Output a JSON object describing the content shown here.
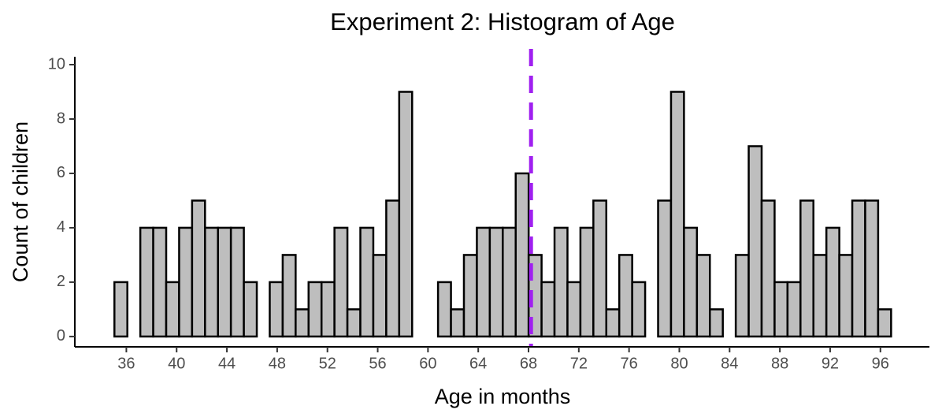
{
  "chart_data": {
    "type": "histogram",
    "title": "Experiment 2: Histogram of Age",
    "xlabel": "Age in months",
    "ylabel": "Count of children",
    "bins": [
      35.05,
      36.08,
      37.11,
      38.14,
      39.17,
      40.2,
      41.23,
      42.26,
      43.29,
      44.32,
      45.35,
      46.38,
      47.41,
      48.44,
      49.47,
      50.5,
      51.53,
      52.56,
      53.59,
      54.62,
      55.65,
      56.68,
      57.71,
      58.74,
      59.77,
      60.8,
      61.83,
      62.86,
      63.89,
      64.92,
      65.95,
      66.98,
      68.01,
      69.04,
      70.07,
      71.1,
      72.13,
      73.16,
      74.19,
      75.22,
      76.25,
      77.28,
      78.31,
      79.34,
      80.37,
      81.4,
      82.43,
      83.46,
      84.49,
      85.52,
      86.55,
      87.58,
      88.61,
      89.64,
      90.67,
      91.7,
      92.73,
      93.76,
      94.79,
      95.82,
      96.85
    ],
    "counts": [
      2,
      0,
      4,
      4,
      2,
      4,
      5,
      4,
      4,
      4,
      2,
      0,
      2,
      3,
      1,
      2,
      2,
      4,
      1,
      4,
      3,
      5,
      9,
      0,
      0,
      2,
      1,
      3,
      4,
      4,
      4,
      6,
      3,
      2,
      4,
      2,
      4,
      5,
      1,
      3,
      2,
      0,
      5,
      9,
      4,
      3,
      1,
      0,
      3,
      7,
      5,
      2,
      2,
      5,
      3,
      4,
      3,
      5,
      5,
      1
    ],
    "color": "#bebebe",
    "edgecolor": "#000000",
    "xlim": [
      31.9,
      99.9
    ],
    "ylim": [
      -0.38,
      10.29
    ],
    "xticks": [
      36,
      40,
      44,
      48,
      52,
      56,
      60,
      64,
      68,
      72,
      76,
      80,
      84,
      88,
      92,
      96
    ],
    "yticks": [
      0,
      2,
      4,
      6,
      8,
      10
    ],
    "vline": {
      "x": 68.2,
      "color": "#a020f0"
    }
  }
}
